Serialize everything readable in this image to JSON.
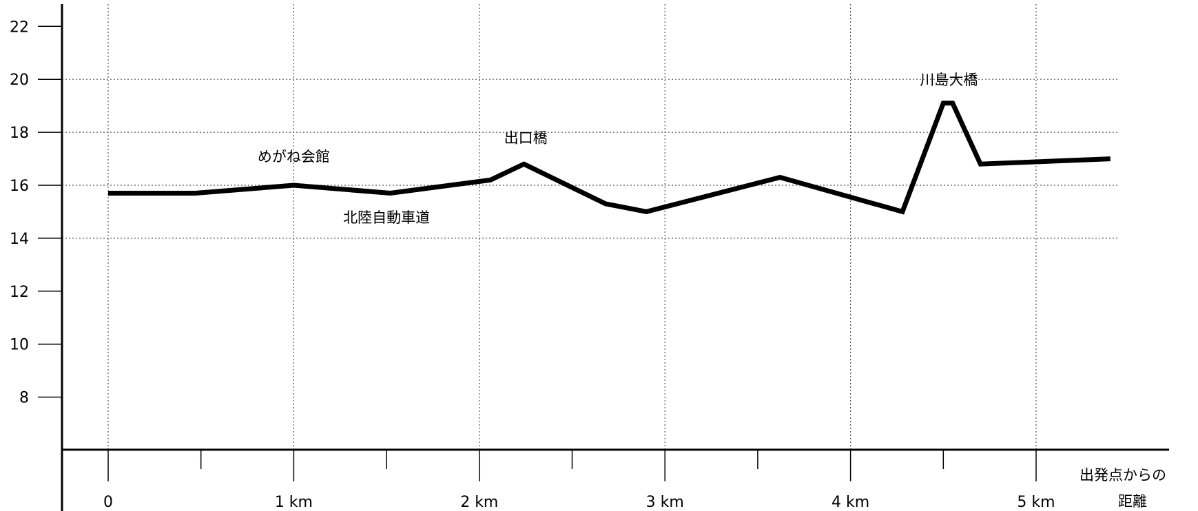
{
  "chart_data": {
    "type": "line",
    "title": "",
    "xlabel": "出発点からの距離",
    "xlabel_lines": [
      "出発点からの",
      "距離"
    ],
    "ylabel": "",
    "ylim": [
      6.2,
      22.7
    ],
    "xlim": [
      -0.25,
      5.85
    ],
    "grid": true,
    "y_ticks": [
      8,
      10,
      12,
      14,
      16,
      18,
      20,
      22
    ],
    "y_grid": [
      14,
      16,
      18,
      20
    ],
    "y_tick_labels": [
      "8",
      "10",
      "12",
      "14",
      "16",
      "18",
      "20",
      "22"
    ],
    "x_major_ticks": [
      0,
      1,
      2,
      3,
      4,
      5
    ],
    "x_minor_ticks": [
      0.5,
      1.5,
      2.5,
      3.5,
      4.5
    ],
    "x_tick_labels": [
      "0",
      "1 km",
      "2 km",
      "3 km",
      "4 km",
      "5 km"
    ],
    "series": [
      {
        "x": [
          0,
          0.47,
          1.0,
          1.52,
          2.06,
          2.24,
          2.68,
          2.9,
          3.62,
          4.28,
          4.5,
          4.55,
          4.7,
          5.4
        ],
        "y": [
          15.7,
          15.7,
          16.0,
          15.7,
          16.2,
          16.8,
          15.3,
          15.0,
          16.3,
          15.0,
          19.1,
          19.1,
          16.8,
          17.0
        ]
      }
    ],
    "annotations": [
      {
        "text": "めがね会館",
        "x": 1.0,
        "y": 16.9
      },
      {
        "text": "北陸自動車道",
        "x": 1.5,
        "y": 14.6
      },
      {
        "text": "出口橋",
        "x": 2.25,
        "y": 17.6
      },
      {
        "text": "川島大橋",
        "x": 4.53,
        "y": 19.8
      }
    ]
  }
}
